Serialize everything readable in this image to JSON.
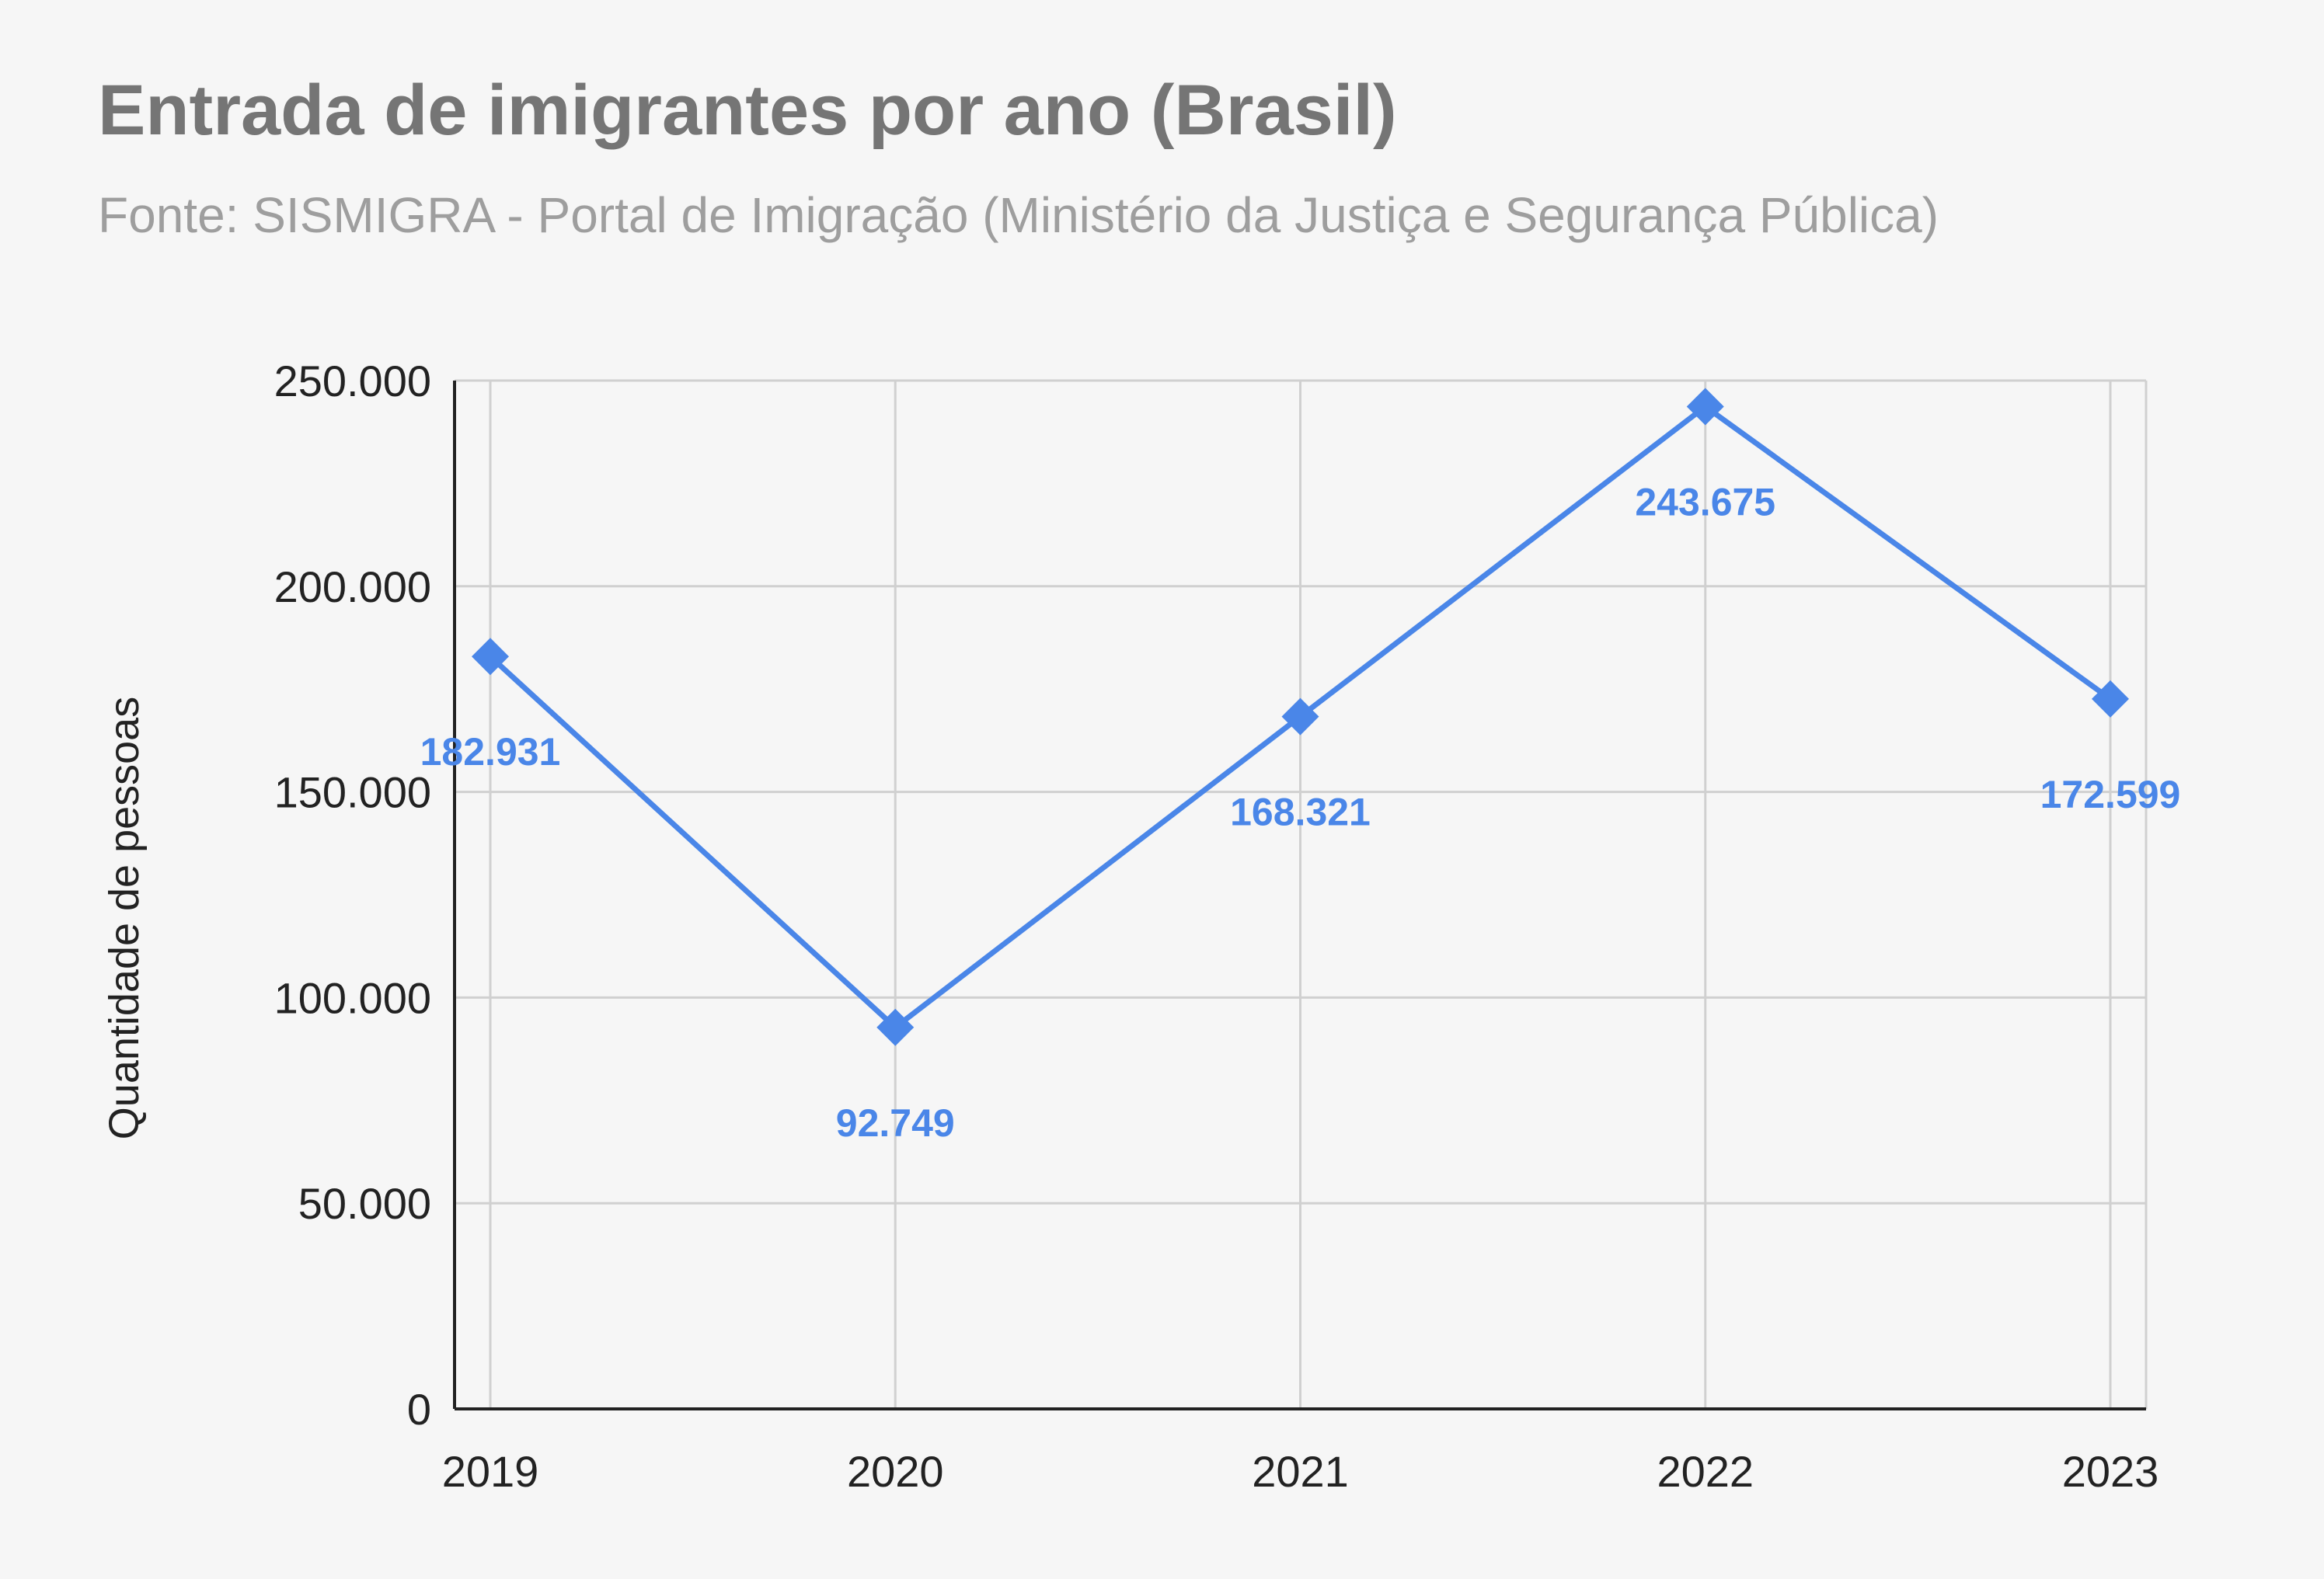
{
  "chart_data": {
    "type": "line",
    "title": "Entrada de imigrantes por ano (Brasil)",
    "subtitle": "Fonte: SISMIGRA - Portal de Imigração (Ministério da Justiça e Segurança Pública)",
    "xlabel": "",
    "ylabel": "Quantidade de pessoas",
    "categories": [
      "2019",
      "2020",
      "2021",
      "2022",
      "2023"
    ],
    "series": [
      {
        "values": [
          182931,
          92749,
          168321,
          243675,
          172599
        ],
        "data_labels": [
          "182.931",
          "92.749",
          "168.321",
          "243.675",
          "172.599"
        ],
        "color": "#4a86e8",
        "marker": "diamond"
      }
    ],
    "ylim": [
      0,
      250000
    ],
    "yticks": [
      {
        "value": 0,
        "label": "0"
      },
      {
        "value": 50000,
        "label": "50.000"
      },
      {
        "value": 100000,
        "label": "100.000"
      },
      {
        "value": 150000,
        "label": "150.000"
      },
      {
        "value": 200000,
        "label": "200.000"
      },
      {
        "value": 250000,
        "label": "250.000"
      }
    ],
    "grid": true,
    "legend": "none",
    "colors": {
      "series": "#4a86e8",
      "label": "#4a86e8",
      "grid": "#d0d0d0",
      "axis": "#222222",
      "tick_text": "#222222",
      "background": "#f6f6f6"
    }
  }
}
